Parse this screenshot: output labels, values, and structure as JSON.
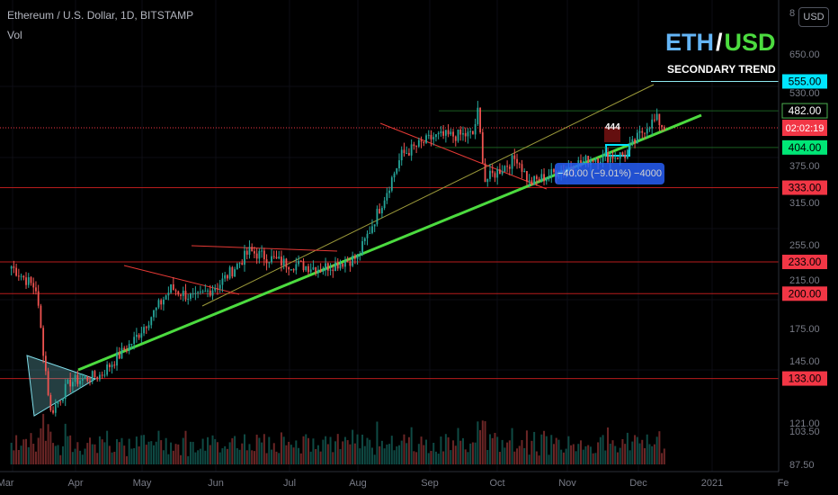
{
  "header": {
    "symbol_line": "Ethereum / U.S. Dollar, 1D, BITSTAMP",
    "volume_label": "Vol"
  },
  "branding": {
    "left": "ETH",
    "separator": "/",
    "right": "USD",
    "subtitle": "SECONDARY TREND"
  },
  "currency_badge": "USD",
  "measure_tooltip": "−40.00 (−9.01%) −4000",
  "colors": {
    "background": "#000000",
    "up_candle": "#26a69a",
    "down_candle": "#ef5350",
    "main_trendline": "#4cdb3f",
    "level_line": "#b71c1c",
    "eth_color": "#64b5f6",
    "usd_color": "#4cdb3f"
  },
  "chart_data": {
    "type": "candlestick",
    "y_scale": "log",
    "x_axis": {
      "tick_labels": [
        "Mar",
        "Apr",
        "May",
        "Jun",
        "Jul",
        "Aug",
        "Sep",
        "Oct",
        "Nov",
        "Dec",
        "2021",
        "Fe"
      ]
    },
    "y_axis": {
      "tick_labels": [
        "8",
        "650.00",
        "530.00",
        "375.00",
        "315.00",
        "255.00",
        "215.00",
        "175.00",
        "145.00",
        "121.00",
        "103.50",
        "87.50"
      ]
    },
    "price_levels": [
      {
        "label": "555.00",
        "value": 555,
        "style": "cyan"
      },
      {
        "label": "482.00",
        "value": 482,
        "style": "green-outline"
      },
      {
        "label": "404.00",
        "value": 404,
        "style": "green"
      },
      {
        "label": "333.00",
        "value": 333,
        "style": "red"
      },
      {
        "label": "233.00",
        "value": 233,
        "style": "red"
      },
      {
        "label": "200.00",
        "value": 200,
        "style": "red"
      },
      {
        "label": "133.00",
        "value": 133,
        "style": "red"
      }
    ],
    "current_price": {
      "label": "02:02:19",
      "value": 444
    },
    "price_note": "444",
    "price_range": {
      "low": 88,
      "high": 800
    },
    "close_path": [
      {
        "date": "2020-02-25",
        "close": 228
      },
      {
        "date": "2020-03-06",
        "close": 205
      },
      {
        "date": "2020-03-12",
        "close": 113
      },
      {
        "date": "2020-03-20",
        "close": 131
      },
      {
        "date": "2020-04-01",
        "close": 135
      },
      {
        "date": "2020-04-15",
        "close": 160
      },
      {
        "date": "2020-04-30",
        "close": 205
      },
      {
        "date": "2020-05-10",
        "close": 195
      },
      {
        "date": "2020-05-20",
        "close": 210
      },
      {
        "date": "2020-06-01",
        "close": 245
      },
      {
        "date": "2020-06-15",
        "close": 232
      },
      {
        "date": "2020-06-30",
        "close": 226
      },
      {
        "date": "2020-07-15",
        "close": 238
      },
      {
        "date": "2020-07-25",
        "close": 310
      },
      {
        "date": "2020-08-02",
        "close": 390
      },
      {
        "date": "2020-08-15",
        "close": 425
      },
      {
        "date": "2020-08-31",
        "close": 430
      },
      {
        "date": "2020-09-02",
        "close": 478
      },
      {
        "date": "2020-09-05",
        "close": 345
      },
      {
        "date": "2020-09-18",
        "close": 385
      },
      {
        "date": "2020-09-23",
        "close": 340
      },
      {
        "date": "2020-10-10",
        "close": 370
      },
      {
        "date": "2020-10-20",
        "close": 385
      },
      {
        "date": "2020-11-01",
        "close": 390
      },
      {
        "date": "2020-11-10",
        "close": 450
      },
      {
        "date": "2020-11-14",
        "close": 462
      },
      {
        "date": "2020-11-17",
        "close": 444
      }
    ]
  }
}
